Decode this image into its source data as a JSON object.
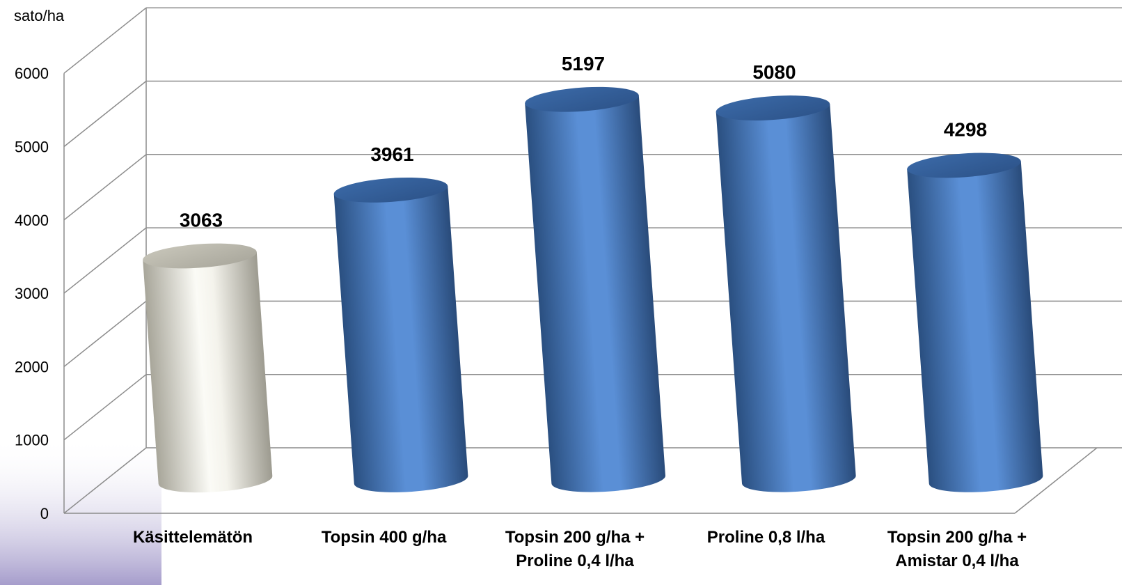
{
  "chart_data": {
    "type": "bar",
    "ylabel": "sato/ha",
    "ylim": [
      0,
      6000
    ],
    "yticks": [
      0,
      1000,
      2000,
      3000,
      4000,
      5000,
      6000
    ],
    "grid": true,
    "categories": [
      [
        "Käsittelemätön"
      ],
      [
        "Topsin 400 g/ha"
      ],
      [
        "Topsin 200 g/ha +",
        "Proline 0,4 l/ha"
      ],
      [
        "Proline 0,8 l/ha"
      ],
      [
        "Topsin 200 g/ha +",
        "Amistar 0,4 l/ha"
      ]
    ],
    "values": [
      3063,
      3961,
      5197,
      5080,
      4298
    ],
    "colors": [
      "#e9e7dc",
      "#4f81bd",
      "#4f81bd",
      "#4f81bd",
      "#4f81bd"
    ],
    "data_labels": [
      "3063",
      "3961",
      "5197",
      "5080",
      "4298"
    ]
  }
}
